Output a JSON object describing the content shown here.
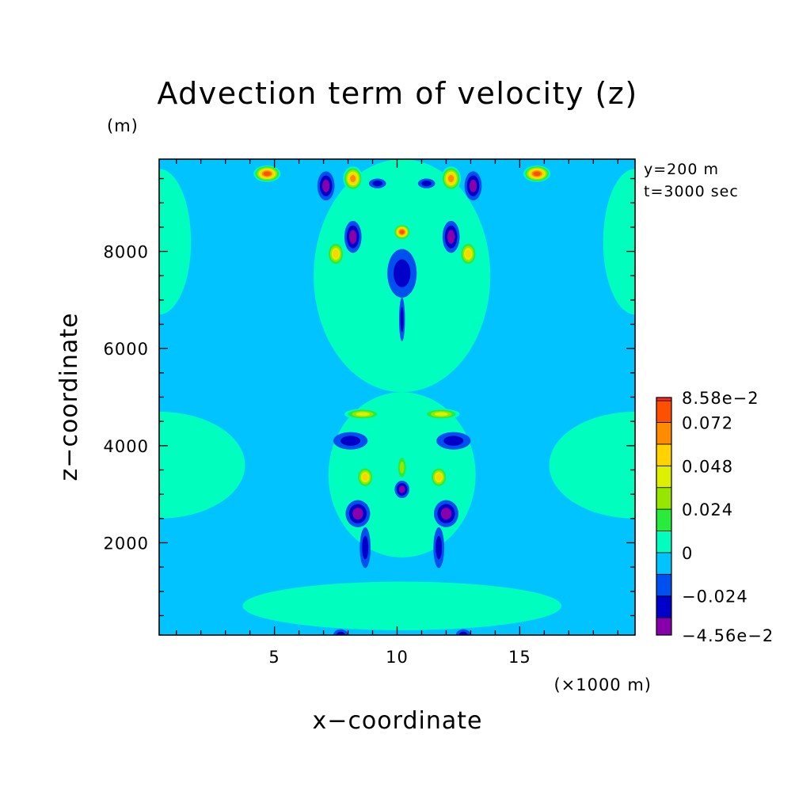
{
  "chart_data": {
    "type": "heatmap",
    "subtype": "filled-contour",
    "title": "Advection term of velocity (z)",
    "xlabel": "x−coordinate",
    "ylabel": "z−coordinate",
    "x_unit": "(×1000 m)",
    "y_unit": "(m)",
    "annotations": [
      "y=200 m",
      "t=3000 sec"
    ],
    "xlim": [
      0.3,
      19.7
    ],
    "ylim": [
      100,
      9900
    ],
    "x_ticks": [
      5,
      10,
      15
    ],
    "x_tick_labels": [
      "5",
      "10",
      "15"
    ],
    "y_ticks": [
      2000,
      4000,
      6000,
      8000
    ],
    "y_tick_labels": [
      "2000",
      "4000",
      "6000",
      "8000"
    ],
    "grid": false,
    "colorbar": {
      "min": -0.0456,
      "max": 0.0858,
      "min_label": "−4.56e−2",
      "max_label": "8.58e−2",
      "levels": [
        -0.0456,
        -0.036,
        -0.024,
        -0.012,
        0,
        0.012,
        0.024,
        0.036,
        0.048,
        0.06,
        0.072,
        0.084,
        0.0858
      ],
      "colors": [
        "#8800aa",
        "#0000c8",
        "#0050f0",
        "#00c3ff",
        "#00ffbe",
        "#28eb3c",
        "#96e600",
        "#dcf000",
        "#ffd200",
        "#ff8c00",
        "#ff5000",
        "#ff2828"
      ],
      "tick_values": [
        -0.0456,
        -0.024,
        0,
        0.024,
        0.048,
        0.072,
        0.0858
      ],
      "tick_labels": [
        "−4.56e−2",
        "−0.024",
        "0",
        "0.024",
        "0.048",
        "0.072",
        "8.58e−2"
      ]
    },
    "background_value": -0.006,
    "features": [
      {
        "x": 4.7,
        "z": 9600,
        "value": 0.078,
        "rx": 0.55,
        "rz": 170
      },
      {
        "x": 15.7,
        "z": 9600,
        "value": 0.078,
        "rx": 0.55,
        "rz": 170
      },
      {
        "x": 8.2,
        "z": 9500,
        "value": 0.06,
        "rx": 0.4,
        "rz": 250
      },
      {
        "x": 12.2,
        "z": 9500,
        "value": 0.06,
        "rx": 0.4,
        "rz": 250
      },
      {
        "x": 7.1,
        "z": 9350,
        "value": -0.042,
        "rx": 0.35,
        "rz": 300
      },
      {
        "x": 13.1,
        "z": 9350,
        "value": -0.042,
        "rx": 0.35,
        "rz": 300
      },
      {
        "x": 9.2,
        "z": 9400,
        "value": -0.03,
        "rx": 0.35,
        "rz": 100
      },
      {
        "x": 11.2,
        "z": 9400,
        "value": -0.03,
        "rx": 0.35,
        "rz": 100
      },
      {
        "x": 10.2,
        "z": 8400,
        "value": 0.072,
        "rx": 0.35,
        "rz": 160
      },
      {
        "x": 8.2,
        "z": 8300,
        "value": -0.04,
        "rx": 0.35,
        "rz": 330
      },
      {
        "x": 12.2,
        "z": 8300,
        "value": -0.04,
        "rx": 0.35,
        "rz": 330
      },
      {
        "x": 7.5,
        "z": 7950,
        "value": 0.05,
        "rx": 0.35,
        "rz": 250
      },
      {
        "x": 12.9,
        "z": 7950,
        "value": 0.05,
        "rx": 0.35,
        "rz": 250
      },
      {
        "x": 10.2,
        "z": 7550,
        "value": -0.03,
        "rx": 0.6,
        "rz": 500
      },
      {
        "x": 10.2,
        "z": 6600,
        "value": -0.026,
        "rx": 0.12,
        "rz": 450
      },
      {
        "x": 8.6,
        "z": 4650,
        "value": 0.04,
        "rx": 0.75,
        "rz": 110
      },
      {
        "x": 11.8,
        "z": 4650,
        "value": 0.04,
        "rx": 0.75,
        "rz": 110
      },
      {
        "x": 8.1,
        "z": 4100,
        "value": -0.03,
        "rx": 0.7,
        "rz": 180
      },
      {
        "x": 12.3,
        "z": 4100,
        "value": -0.03,
        "rx": 0.7,
        "rz": 180
      },
      {
        "x": 8.7,
        "z": 3350,
        "value": 0.05,
        "rx": 0.35,
        "rz": 220
      },
      {
        "x": 11.7,
        "z": 3350,
        "value": 0.05,
        "rx": 0.35,
        "rz": 220
      },
      {
        "x": 10.2,
        "z": 3550,
        "value": 0.026,
        "rx": 0.22,
        "rz": 280
      },
      {
        "x": 10.2,
        "z": 3100,
        "value": -0.045,
        "rx": 0.3,
        "rz": 180
      },
      {
        "x": 8.4,
        "z": 2600,
        "value": -0.038,
        "rx": 0.5,
        "rz": 280
      },
      {
        "x": 12.0,
        "z": 2600,
        "value": -0.038,
        "rx": 0.5,
        "rz": 280
      },
      {
        "x": 8.7,
        "z": 1900,
        "value": -0.03,
        "rx": 0.22,
        "rz": 420
      },
      {
        "x": 11.7,
        "z": 1900,
        "value": -0.03,
        "rx": 0.22,
        "rz": 420
      },
      {
        "x": 7.7,
        "z": 100,
        "value": -0.03,
        "rx": 0.3,
        "rz": 120
      },
      {
        "x": 12.7,
        "z": 100,
        "value": -0.03,
        "rx": 0.3,
        "rz": 120
      }
    ],
    "positive_regions": [
      {
        "x": 10.2,
        "z": 7500,
        "value": 0.004,
        "rx": 3.6,
        "rz": 2400
      },
      {
        "x": 10.2,
        "z": 3400,
        "value": 0.004,
        "rx": 3.0,
        "rz": 1700
      },
      {
        "x": 0.3,
        "z": 8200,
        "value": 0.004,
        "rx": 1.3,
        "rz": 1500
      },
      {
        "x": 19.7,
        "z": 8200,
        "value": 0.004,
        "rx": 1.3,
        "rz": 1500
      },
      {
        "x": 0.3,
        "z": 3600,
        "value": 0.004,
        "rx": 3.5,
        "rz": 1100
      },
      {
        "x": 19.7,
        "z": 3600,
        "value": 0.004,
        "rx": 3.5,
        "rz": 1100
      },
      {
        "x": 10.2,
        "z": 700,
        "value": 0.004,
        "rx": 6.5,
        "rz": 500
      }
    ]
  }
}
